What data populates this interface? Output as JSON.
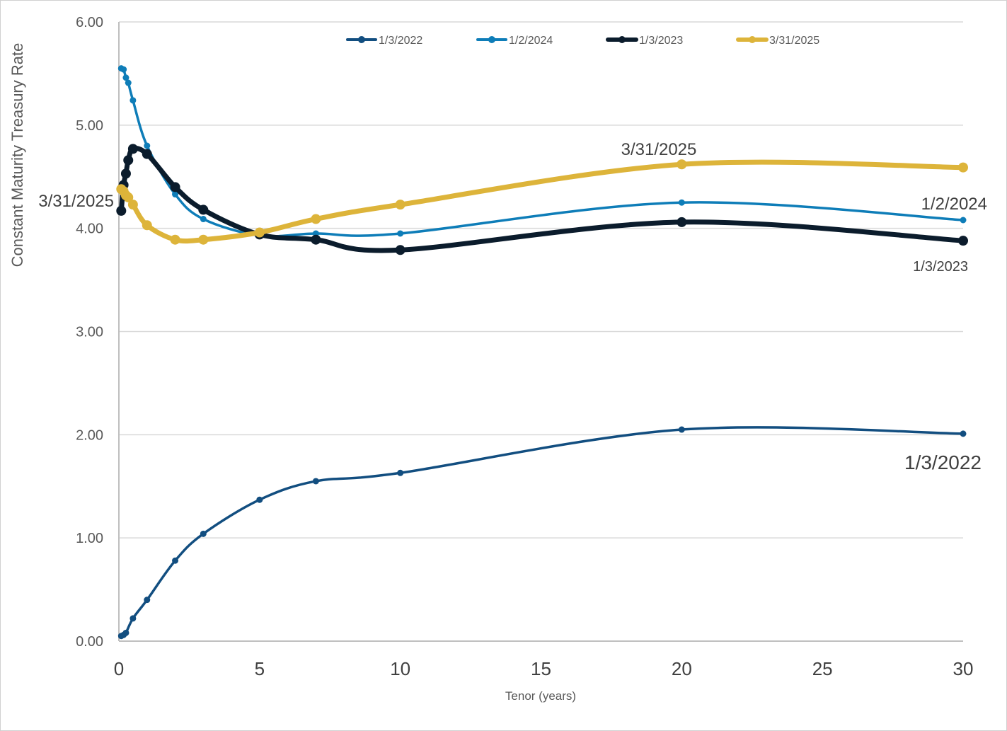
{
  "chart_data": {
    "type": "line",
    "title": "",
    "xlabel": "Tenor (years)",
    "ylabel": "Constant Maturity Treasury Rate",
    "xlim": [
      0,
      30
    ],
    "ylim": [
      0,
      6
    ],
    "xticks": [
      0,
      5,
      10,
      15,
      20,
      25,
      30
    ],
    "yticks": [
      "0.00",
      "1.00",
      "2.00",
      "3.00",
      "4.00",
      "5.00",
      "6.00"
    ],
    "grid": "horizontal",
    "legend": "top",
    "x": [
      0.0833,
      0.1667,
      0.25,
      0.3333,
      0.5,
      1,
      2,
      3,
      5,
      7,
      10,
      20,
      30
    ],
    "series": [
      {
        "name": "1/3/2022",
        "color": "#124E80",
        "width": 3.5,
        "values": [
          0.05,
          0.06,
          0.08,
          null,
          0.22,
          0.4,
          0.78,
          1.04,
          1.37,
          1.55,
          1.63,
          2.05,
          2.01
        ],
        "end_label": "1/3/2022"
      },
      {
        "name": "1/2/2024",
        "color": "#0E7DB8",
        "width": 3.5,
        "values": [
          5.55,
          5.54,
          5.46,
          5.41,
          5.24,
          4.8,
          4.33,
          4.09,
          3.93,
          3.95,
          3.95,
          4.25,
          4.08
        ],
        "end_label": "1/2/2024"
      },
      {
        "name": "1/3/2023",
        "color": "#0B1C2C",
        "width": 7,
        "values": [
          4.17,
          4.42,
          4.53,
          4.66,
          4.77,
          4.72,
          4.4,
          4.18,
          3.94,
          3.89,
          3.79,
          4.06,
          3.88
        ],
        "end_label": "1/3/2023"
      },
      {
        "name": "3/31/2025",
        "color": "#DDB43A",
        "width": 7,
        "values": [
          4.38,
          4.36,
          4.32,
          4.3,
          4.23,
          4.03,
          3.89,
          3.89,
          3.96,
          4.09,
          4.23,
          4.62,
          4.59
        ],
        "start_label": "3/31/2025",
        "mid_label": "3/31/2025"
      }
    ]
  }
}
